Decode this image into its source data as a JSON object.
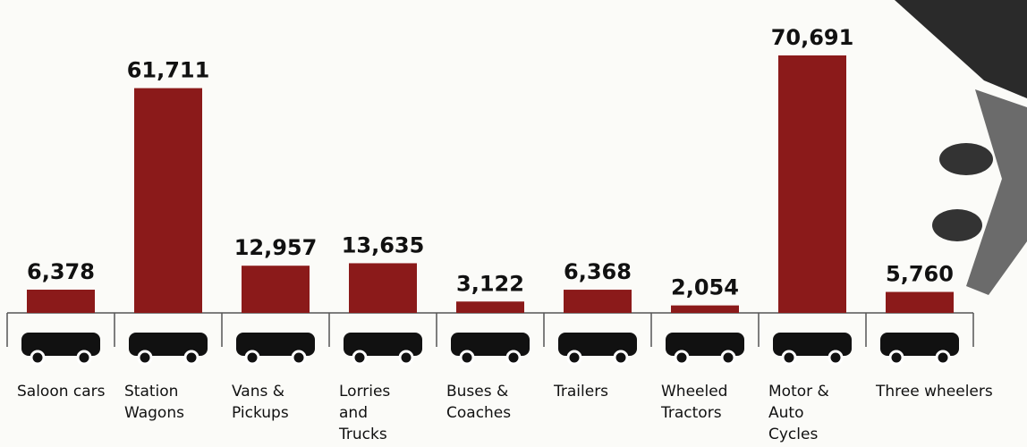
{
  "chart_data": {
    "type": "bar",
    "categories": [
      "Saloon cars",
      "Station\nWagons",
      "Vans &\nPickups",
      "Lorries\nand\nTrucks",
      "Buses &\nCoaches",
      "Trailers",
      "Wheeled\nTractors",
      "Motor &\nAuto\nCycles",
      "Three wheelers"
    ],
    "values": [
      6378,
      61711,
      12957,
      13635,
      3122,
      6368,
      2054,
      70691,
      5760
    ],
    "value_labels": [
      "6,378",
      "61,711",
      "12,957",
      "13,635",
      "3,122",
      "6,368",
      "2,054",
      "70,691",
      "5,760"
    ],
    "color": "#8b1a1a"
  }
}
